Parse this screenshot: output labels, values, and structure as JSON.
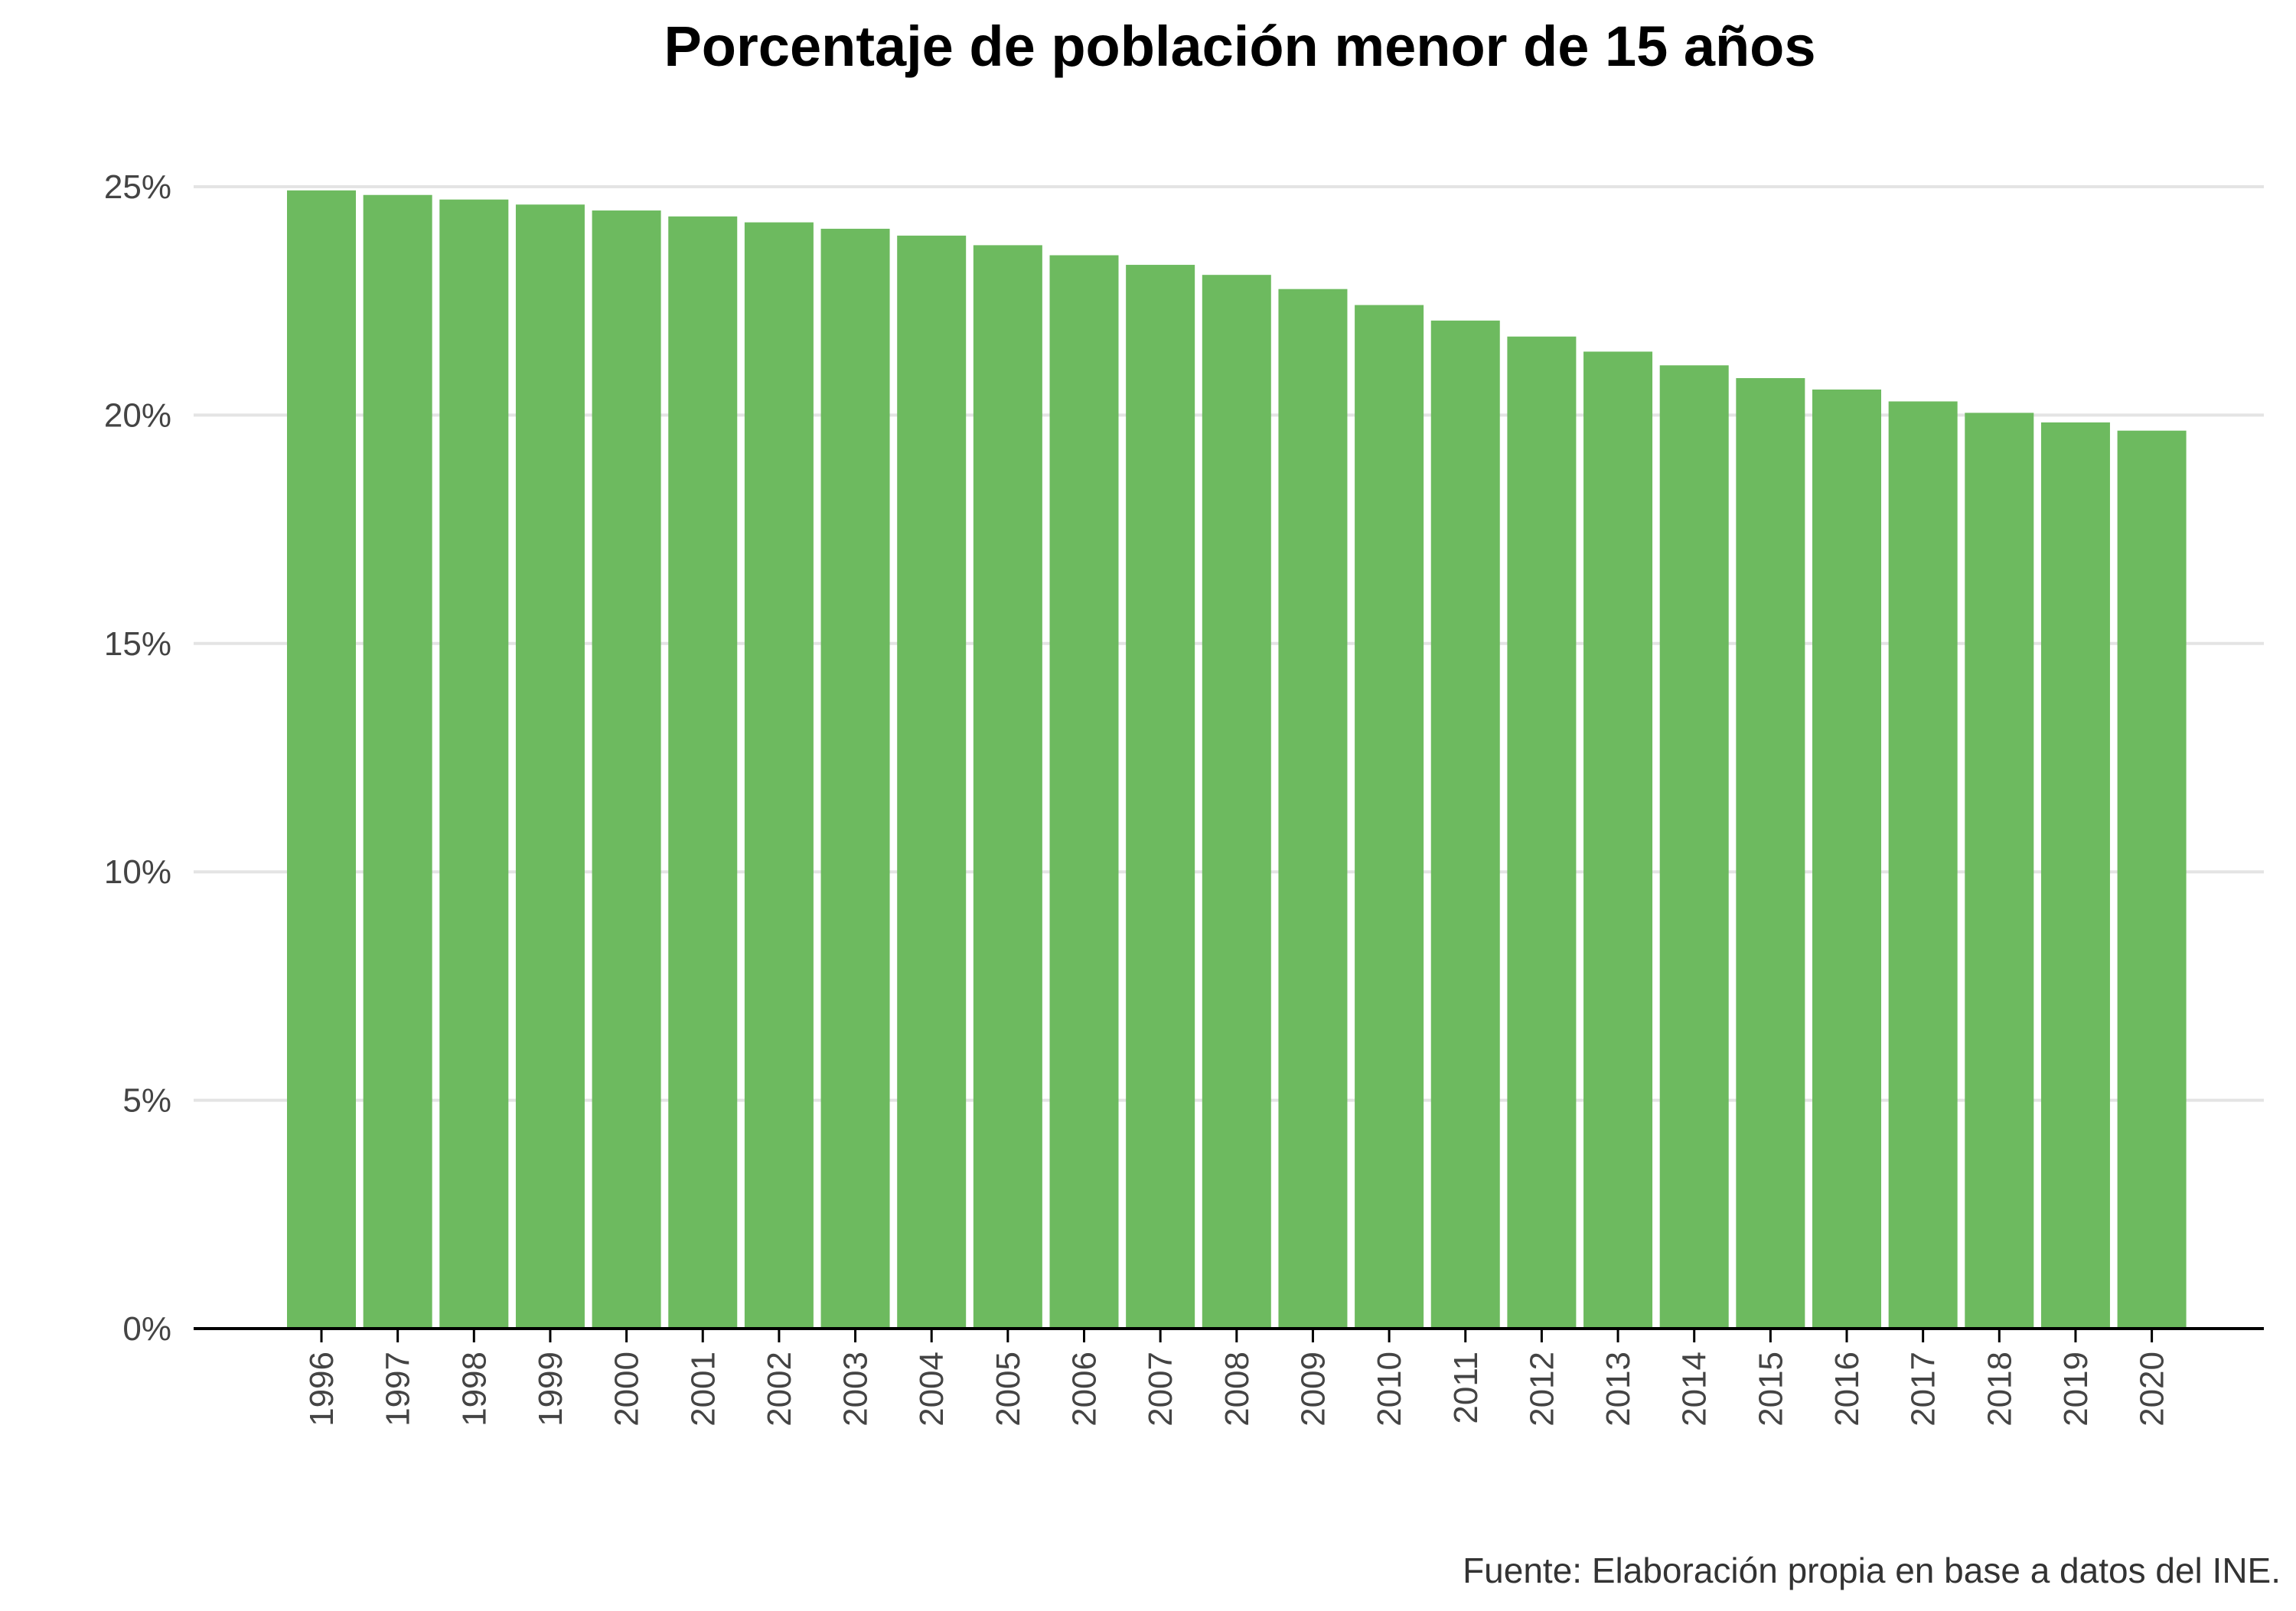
{
  "chart_data": {
    "type": "bar",
    "title": "Porcentaje de población menor de 15 años",
    "xlabel": "",
    "ylabel": "",
    "categories": [
      "1996",
      "1997",
      "1998",
      "1999",
      "2000",
      "2001",
      "2002",
      "2003",
      "2004",
      "2005",
      "2006",
      "2007",
      "2008",
      "2009",
      "2010",
      "2011",
      "2012",
      "2013",
      "2014",
      "2015",
      "2016",
      "2017",
      "2018",
      "2019",
      "2020"
    ],
    "values": [
      24.92,
      24.82,
      24.72,
      24.61,
      24.48,
      24.35,
      24.22,
      24.08,
      23.93,
      23.72,
      23.5,
      23.29,
      23.07,
      22.76,
      22.41,
      22.07,
      21.72,
      21.39,
      21.09,
      20.81,
      20.56,
      20.3,
      20.05,
      19.84,
      19.66
    ],
    "ylim": [
      0,
      25
    ],
    "yticks": [
      0,
      5,
      10,
      15,
      20,
      25
    ],
    "ytick_labels": [
      "0%",
      "5%",
      "10%",
      "15%",
      "20%",
      "25%"
    ],
    "grid": true,
    "bar_color": "#6dba5f"
  },
  "caption": "Fuente: Elaboración propia en base a datos del INE."
}
